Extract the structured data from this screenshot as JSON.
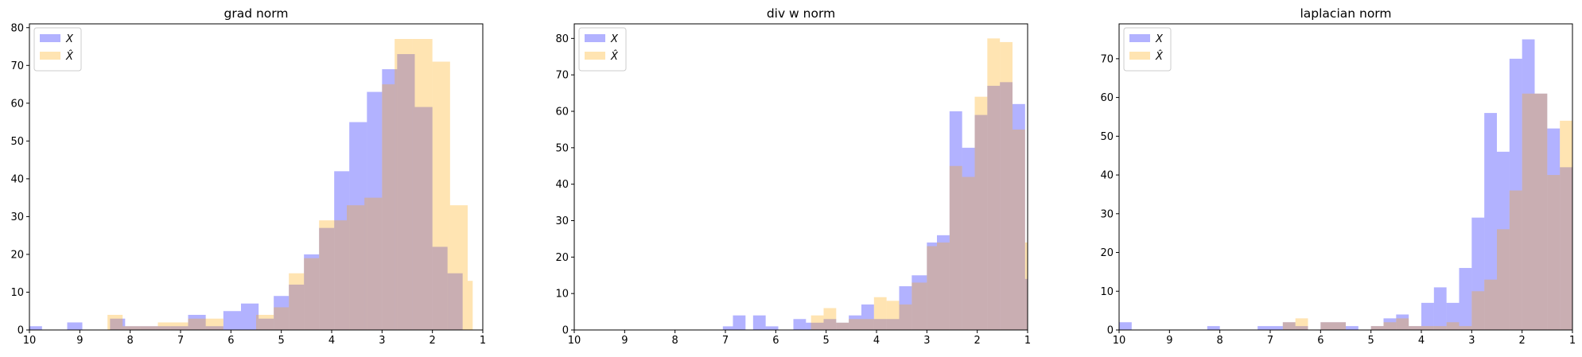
{
  "chart_data": [
    {
      "type": "histogram",
      "title": "grad norm",
      "xlim": [
        10,
        1
      ],
      "ylim": [
        0,
        81
      ],
      "x_ticks": [
        10,
        9,
        8,
        7,
        6,
        5,
        4,
        3,
        2,
        1
      ],
      "y_ticks": [
        0,
        10,
        20,
        30,
        40,
        50,
        60,
        70,
        80
      ],
      "legend_loc": "upper-left",
      "series": [
        {
          "name": "X",
          "color": "#0000ff",
          "opacity": 0.3,
          "bins": [
            [
              10.0,
              9.75,
              1
            ],
            [
              9.25,
              8.95,
              2
            ],
            [
              8.4,
              8.1,
              3
            ],
            [
              8.1,
              7.8,
              1
            ],
            [
              7.8,
              7.5,
              1
            ],
            [
              7.5,
              7.2,
              1
            ],
            [
              7.2,
              6.85,
              1
            ],
            [
              6.85,
              6.5,
              4
            ],
            [
              6.5,
              6.15,
              1
            ],
            [
              6.15,
              5.8,
              5
            ],
            [
              5.8,
              5.45,
              7
            ],
            [
              5.45,
              5.15,
              3
            ],
            [
              5.15,
              4.85,
              9
            ],
            [
              4.85,
              4.55,
              12
            ],
            [
              4.55,
              4.25,
              20
            ],
            [
              4.25,
              3.95,
              27
            ],
            [
              3.95,
              3.65,
              42
            ],
            [
              3.65,
              3.3,
              55
            ],
            [
              3.3,
              3.0,
              63
            ],
            [
              3.0,
              2.7,
              69
            ],
            [
              2.7,
              2.35,
              73
            ],
            [
              2.35,
              2.0,
              59
            ],
            [
              2.0,
              1.7,
              22
            ],
            [
              1.7,
              1.4,
              15
            ]
          ]
        },
        {
          "name": "X̂",
          "color": "#ffa500",
          "opacity": 0.3,
          "bins": [
            [
              8.45,
              8.15,
              4
            ],
            [
              8.15,
              7.45,
              1
            ],
            [
              7.45,
              6.85,
              2
            ],
            [
              6.85,
              6.45,
              3
            ],
            [
              6.45,
              6.15,
              3
            ],
            [
              5.5,
              5.15,
              4
            ],
            [
              5.15,
              4.85,
              6
            ],
            [
              4.85,
              4.55,
              15
            ],
            [
              4.55,
              4.25,
              19
            ],
            [
              4.25,
              3.95,
              29
            ],
            [
              3.95,
              3.7,
              29
            ],
            [
              3.7,
              3.35,
              33
            ],
            [
              3.35,
              3.0,
              35
            ],
            [
              3.0,
              2.75,
              65
            ],
            [
              2.75,
              2.4,
              77
            ],
            [
              2.4,
              2.0,
              77
            ],
            [
              2.0,
              1.65,
              71
            ],
            [
              1.65,
              1.3,
              33
            ],
            [
              1.3,
              1.2,
              13
            ]
          ]
        }
      ]
    },
    {
      "type": "histogram",
      "title": "div w norm",
      "xlim": [
        10,
        1
      ],
      "ylim": [
        0,
        84
      ],
      "x_ticks": [
        10,
        9,
        8,
        7,
        6,
        5,
        4,
        3,
        2,
        1
      ],
      "y_ticks": [
        0,
        10,
        20,
        30,
        40,
        50,
        60,
        70,
        80
      ],
      "legend_loc": "upper-left",
      "series": [
        {
          "name": "X",
          "color": "#0000ff",
          "opacity": 0.3,
          "bins": [
            [
              7.05,
              6.85,
              1
            ],
            [
              6.85,
              6.6,
              4
            ],
            [
              6.45,
              6.2,
              4
            ],
            [
              6.2,
              5.95,
              1
            ],
            [
              5.65,
              5.4,
              3
            ],
            [
              5.4,
              5.05,
              2
            ],
            [
              5.05,
              4.8,
              3
            ],
            [
              4.8,
              4.55,
              2
            ],
            [
              4.55,
              4.3,
              4
            ],
            [
              4.3,
              4.05,
              7
            ],
            [
              4.05,
              3.8,
              3
            ],
            [
              3.8,
              3.55,
              3
            ],
            [
              3.55,
              3.3,
              12
            ],
            [
              3.3,
              3.0,
              15
            ],
            [
              3.0,
              2.8,
              24
            ],
            [
              2.8,
              2.55,
              26
            ],
            [
              2.55,
              2.3,
              60
            ],
            [
              2.3,
              2.05,
              50
            ],
            [
              2.05,
              1.8,
              59
            ],
            [
              1.8,
              1.55,
              67
            ],
            [
              1.55,
              1.3,
              68
            ],
            [
              1.3,
              1.05,
              62
            ],
            [
              1.05,
              1.0,
              14
            ]
          ]
        },
        {
          "name": "X̂",
          "color": "#ffa500",
          "opacity": 0.3,
          "bins": [
            [
              5.3,
              5.05,
              4
            ],
            [
              5.05,
              4.8,
              6
            ],
            [
              4.8,
              4.55,
              2
            ],
            [
              4.55,
              4.3,
              3
            ],
            [
              4.3,
              4.05,
              3
            ],
            [
              4.05,
              3.8,
              9
            ],
            [
              3.8,
              3.55,
              8
            ],
            [
              3.55,
              3.3,
              7
            ],
            [
              3.3,
              3.0,
              13
            ],
            [
              3.0,
              2.8,
              23
            ],
            [
              2.8,
              2.55,
              24
            ],
            [
              2.55,
              2.3,
              45
            ],
            [
              2.3,
              2.05,
              42
            ],
            [
              2.05,
              1.8,
              64
            ],
            [
              1.8,
              1.55,
              80
            ],
            [
              1.55,
              1.3,
              79
            ],
            [
              1.3,
              1.05,
              55
            ],
            [
              1.05,
              1.0,
              24
            ]
          ]
        }
      ]
    },
    {
      "type": "histogram",
      "title": "laplacian norm",
      "xlim": [
        10,
        1
      ],
      "ylim": [
        0,
        79
      ],
      "x_ticks": [
        10,
        9,
        8,
        7,
        6,
        5,
        4,
        3,
        2,
        1
      ],
      "y_ticks": [
        0,
        10,
        20,
        30,
        40,
        50,
        60,
        70
      ],
      "legend_loc": "upper-left",
      "series": [
        {
          "name": "X",
          "color": "#0000ff",
          "opacity": 0.3,
          "bins": [
            [
              10.0,
              9.75,
              2
            ],
            [
              8.25,
              8.0,
              1
            ],
            [
              7.25,
              6.75,
              1
            ],
            [
              6.75,
              6.5,
              2
            ],
            [
              6.5,
              6.25,
              1
            ],
            [
              6.0,
              5.5,
              2
            ],
            [
              5.5,
              5.25,
              1
            ],
            [
              5.0,
              4.75,
              1
            ],
            [
              4.75,
              4.5,
              3
            ],
            [
              4.5,
              4.25,
              4
            ],
            [
              4.25,
              4.0,
              1
            ],
            [
              4.0,
              3.75,
              7
            ],
            [
              3.75,
              3.5,
              11
            ],
            [
              3.5,
              3.25,
              7
            ],
            [
              3.25,
              3.0,
              16
            ],
            [
              3.0,
              2.75,
              29
            ],
            [
              2.75,
              2.5,
              56
            ],
            [
              2.5,
              2.25,
              46
            ],
            [
              2.25,
              2.0,
              70
            ],
            [
              2.0,
              1.75,
              75
            ],
            [
              1.75,
              1.5,
              61
            ],
            [
              1.5,
              1.25,
              52
            ],
            [
              1.25,
              1.0,
              42
            ]
          ]
        },
        {
          "name": "X̂",
          "color": "#ffa500",
          "opacity": 0.3,
          "bins": [
            [
              6.75,
              6.5,
              2
            ],
            [
              6.5,
              6.25,
              3
            ],
            [
              6.0,
              5.5,
              2
            ],
            [
              5.0,
              4.75,
              1
            ],
            [
              4.75,
              4.5,
              2
            ],
            [
              4.5,
              4.25,
              3
            ],
            [
              4.25,
              3.75,
              1
            ],
            [
              3.75,
              3.5,
              1
            ],
            [
              3.5,
              3.25,
              2
            ],
            [
              3.25,
              3.0,
              1
            ],
            [
              3.0,
              2.75,
              10
            ],
            [
              2.75,
              2.5,
              13
            ],
            [
              2.5,
              2.25,
              26
            ],
            [
              2.25,
              2.0,
              36
            ],
            [
              2.0,
              1.75,
              61
            ],
            [
              1.75,
              1.5,
              61
            ],
            [
              1.5,
              1.25,
              40
            ],
            [
              1.25,
              1.0,
              54
            ]
          ]
        }
      ]
    }
  ]
}
